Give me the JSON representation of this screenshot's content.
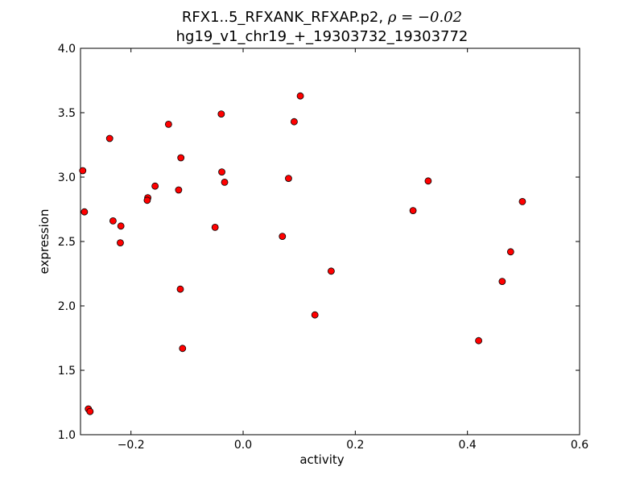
{
  "title": {
    "line1_prefix": "RFX1..5_RFXANK_RFXAP.p2, ",
    "rho_text": "ρ = −0.02",
    "line2": "hg19_v1_chr19_+_19303732_19303772"
  },
  "chart_data": {
    "type": "scatter",
    "xlabel": "activity",
    "ylabel": "expression",
    "xlim": [
      -0.29,
      0.6
    ],
    "ylim": [
      1.0,
      4.0
    ],
    "xticks": [
      -0.2,
      0.0,
      0.2,
      0.4,
      0.6
    ],
    "xtick_labels": [
      "−0.2",
      "0.0",
      "0.2",
      "0.4",
      "0.6"
    ],
    "yticks": [
      1.0,
      1.5,
      2.0,
      2.5,
      3.0,
      3.5,
      4.0
    ],
    "ytick_labels": [
      "1.0",
      "1.5",
      "2.0",
      "2.5",
      "3.0",
      "3.5",
      "4.0"
    ],
    "grid": false,
    "marker_color": "#ff0000",
    "marker_edge": "#000000",
    "points": [
      {
        "x": -0.286,
        "y": 3.05
      },
      {
        "x": -0.283,
        "y": 2.73
      },
      {
        "x": -0.238,
        "y": 3.3
      },
      {
        "x": -0.232,
        "y": 2.66
      },
      {
        "x": -0.218,
        "y": 2.62
      },
      {
        "x": -0.219,
        "y": 2.49
      },
      {
        "x": -0.17,
        "y": 2.84
      },
      {
        "x": -0.171,
        "y": 2.82
      },
      {
        "x": -0.157,
        "y": 2.93
      },
      {
        "x": -0.133,
        "y": 3.41
      },
      {
        "x": -0.115,
        "y": 2.9
      },
      {
        "x": -0.111,
        "y": 3.15
      },
      {
        "x": -0.112,
        "y": 2.13
      },
      {
        "x": -0.108,
        "y": 1.67
      },
      {
        "x": -0.05,
        "y": 2.61
      },
      {
        "x": -0.039,
        "y": 3.49
      },
      {
        "x": -0.038,
        "y": 3.04
      },
      {
        "x": -0.033,
        "y": 2.96
      },
      {
        "x": 0.07,
        "y": 2.54
      },
      {
        "x": 0.081,
        "y": 2.99
      },
      {
        "x": 0.091,
        "y": 3.43
      },
      {
        "x": 0.102,
        "y": 3.63
      },
      {
        "x": 0.128,
        "y": 1.93
      },
      {
        "x": 0.157,
        "y": 2.27
      },
      {
        "x": 0.303,
        "y": 2.74
      },
      {
        "x": 0.33,
        "y": 2.97
      },
      {
        "x": 0.42,
        "y": 1.73
      },
      {
        "x": 0.462,
        "y": 2.19
      },
      {
        "x": 0.477,
        "y": 2.42
      },
      {
        "x": 0.498,
        "y": 2.81
      },
      {
        "x": -0.276,
        "y": 1.2
      },
      {
        "x": -0.273,
        "y": 1.18
      }
    ]
  }
}
